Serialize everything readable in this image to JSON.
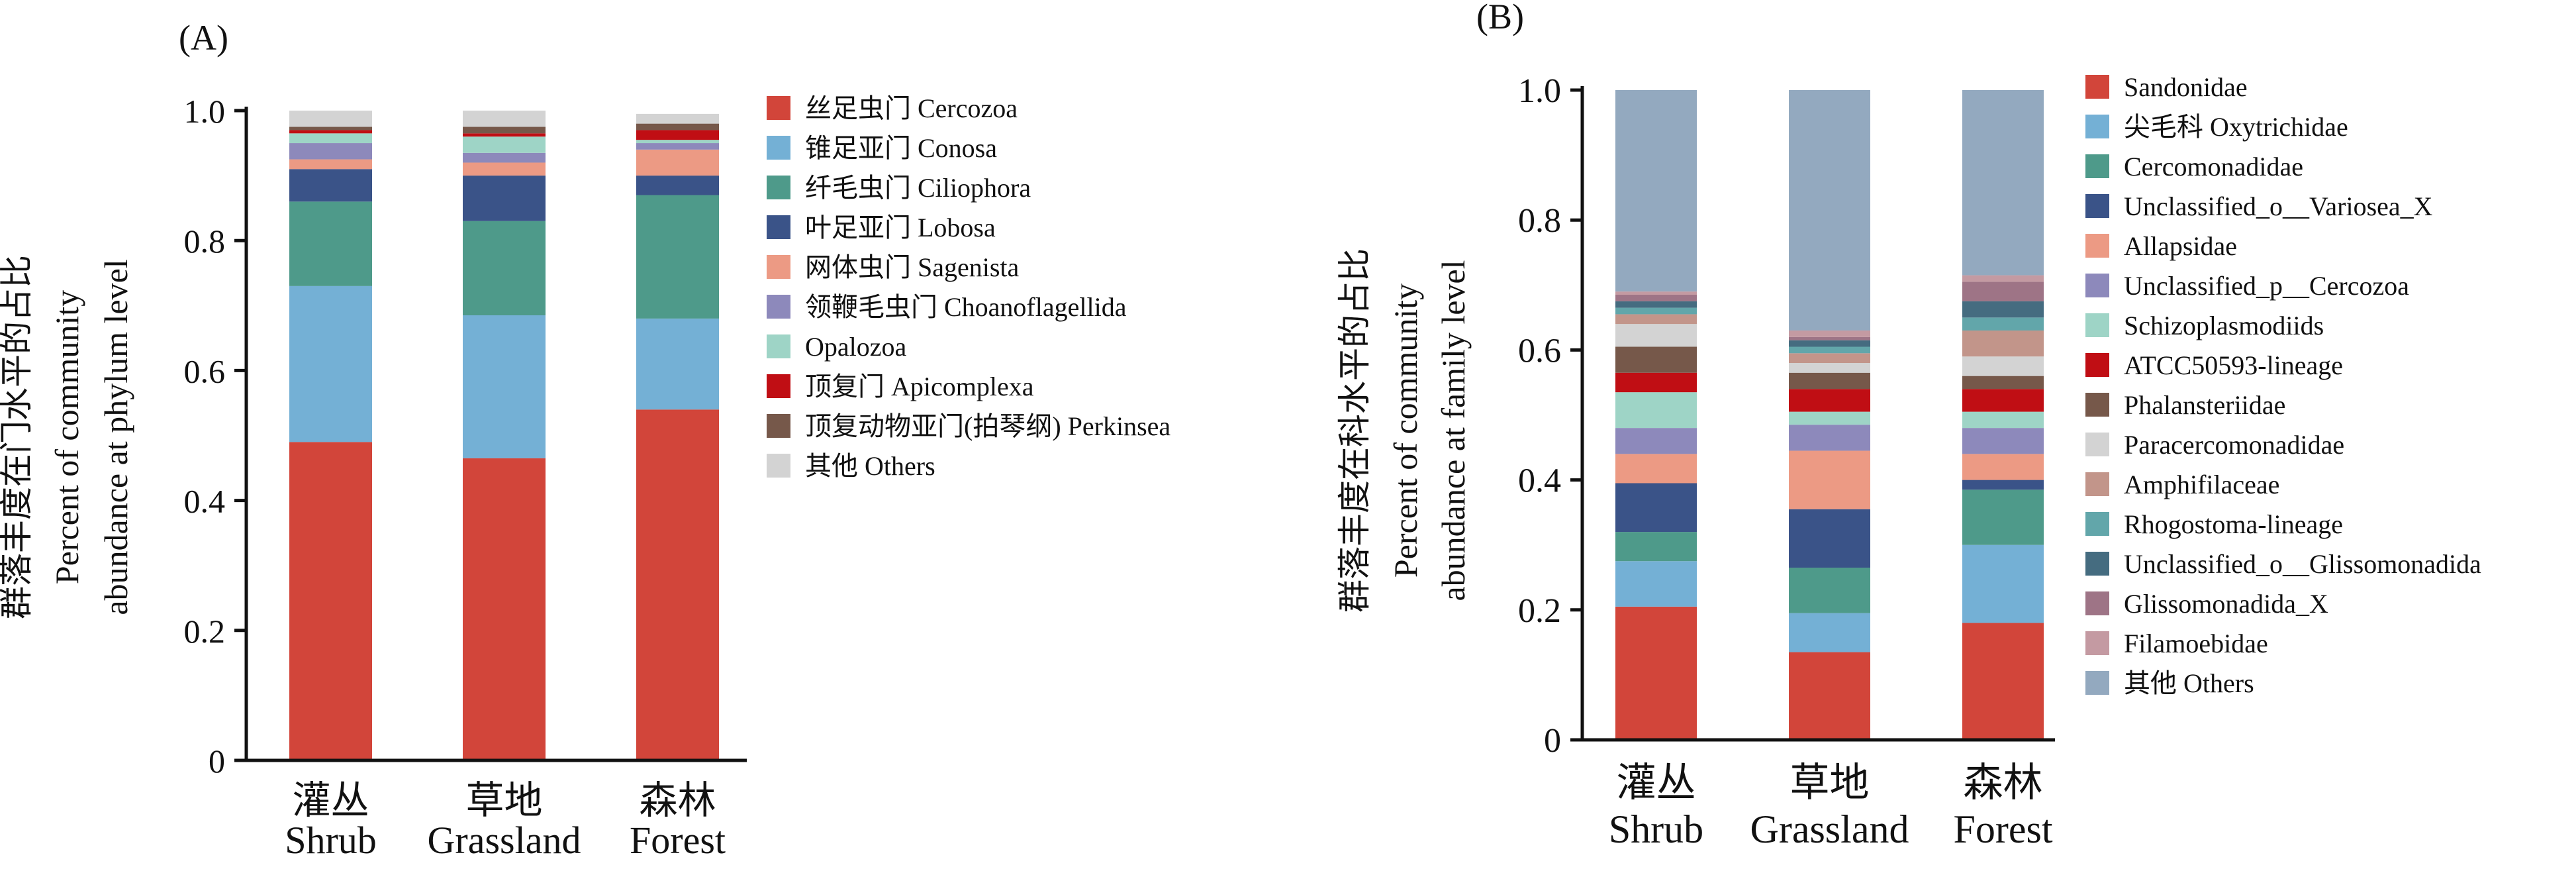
{
  "colors": {
    "axis": "#111111",
    "Cercozoa": "#D2453A",
    "Conosa": "#74B0D5",
    "Ciliophora": "#4E9A8A",
    "Lobosa": "#3A5388",
    "Sagenista": "#EC9A84",
    "Choanoflagellida": "#8D89BB",
    "Opalozoa": "#9ED4C6",
    "Apicomplexa": "#C00E14",
    "Perkinsea": "#76584A",
    "Others": "#D3D3D3",
    "Sandonidae": "#D2453A",
    "Oxytrichidae": "#74B0D5",
    "Cercomonadidae": "#4E9A8A",
    "Variosea_X": "#3A5388",
    "Allapsidae": "#EC9A84",
    "p_Cercozoa": "#8D89BB",
    "Schizoplasmodiids": "#9ED4C6",
    "ATCC50593": "#C00E14",
    "Phalansteriidae": "#76584A",
    "Paracercomonadidae": "#D3D3D3",
    "Amphifilaceae": "#C2958A",
    "Rhogostoma": "#62A6AA",
    "o_Glissomonadida": "#456C80",
    "Glissomonadida_X": "#9E7486",
    "Filamoebidae": "#C49AA2",
    "OthersB": "#93A9BF"
  },
  "chart_data": [
    {
      "type": "bar",
      "stacked": true,
      "panel_label": "(A)",
      "ylabel_cn": "群落丰度在门水平的占比",
      "ylabel_en_1": "Percent of community",
      "ylabel_en_2": "abundance at phylum level",
      "ylim": [
        0,
        1.0
      ],
      "yticks": [
        "0",
        "0.2",
        "0.4",
        "0.6",
        "0.8",
        "1.0"
      ],
      "categories": [
        {
          "cn": "灌丛",
          "en": "Shrub"
        },
        {
          "cn": "草地",
          "en": "Grassland"
        },
        {
          "cn": "森林",
          "en": "Forest"
        }
      ],
      "series": [
        {
          "name": "丝足虫门 Cercozoa",
          "key": "Cercozoa",
          "values": [
            0.49,
            0.465,
            0.54
          ]
        },
        {
          "name": "锥足亚门  Conosa",
          "key": "Conosa",
          "values": [
            0.24,
            0.22,
            0.14
          ]
        },
        {
          "name": "纤毛虫门 Ciliophora",
          "key": "Ciliophora",
          "values": [
            0.13,
            0.145,
            0.19
          ]
        },
        {
          "name": "叶足亚门 Lobosa",
          "key": "Lobosa",
          "values": [
            0.05,
            0.07,
            0.03
          ]
        },
        {
          "name": "网体虫门 Sagenista",
          "key": "Sagenista",
          "values": [
            0.015,
            0.02,
            0.04
          ]
        },
        {
          "name": "领鞭毛虫门 Choanoflagellida",
          "key": "Choanoflagellida",
          "values": [
            0.025,
            0.015,
            0.01
          ]
        },
        {
          "name": "Opalozoa",
          "key": "Opalozoa",
          "values": [
            0.015,
            0.025,
            0.005
          ]
        },
        {
          "name": "顶复门 Apicomplexa",
          "key": "Apicomplexa",
          "values": [
            0.005,
            0.005,
            0.015
          ]
        },
        {
          "name": "顶复动物亚门(拍琴纲) Perkinsea",
          "key": "Perkinsea",
          "values": [
            0.005,
            0.01,
            0.01
          ]
        },
        {
          "name": "其他 Others",
          "key": "Others",
          "values": [
            0.025,
            0.025,
            0.015
          ]
        }
      ]
    },
    {
      "type": "bar",
      "stacked": true,
      "panel_label": "(B)",
      "ylabel_cn": "群落丰度在科水平的占比",
      "ylabel_en_1": "Percent of community",
      "ylabel_en_2": "abundance at family level",
      "ylim": [
        0,
        1.0
      ],
      "yticks": [
        "0",
        "0.2",
        "0.4",
        "0.6",
        "0.8",
        "1.0"
      ],
      "categories": [
        {
          "cn": "灌丛",
          "en": "Shrub"
        },
        {
          "cn": "草地",
          "en": "Grassland"
        },
        {
          "cn": "森林",
          "en": "Forest"
        }
      ],
      "series": [
        {
          "name": "Sandonidae",
          "key": "Sandonidae",
          "values": [
            0.205,
            0.135,
            0.18
          ]
        },
        {
          "name": "尖毛科 Oxytrichidae",
          "key": "Oxytrichidae",
          "values": [
            0.07,
            0.06,
            0.12
          ]
        },
        {
          "name": "Cercomonadidae",
          "key": "Cercomonadidae",
          "values": [
            0.045,
            0.07,
            0.085
          ]
        },
        {
          "name": "Unclassified_o__Variosea_X",
          "key": "Variosea_X",
          "values": [
            0.075,
            0.09,
            0.015
          ]
        },
        {
          "name": "Allapsidae",
          "key": "Allapsidae",
          "values": [
            0.045,
            0.09,
            0.04
          ]
        },
        {
          "name": "Unclassified_p__Cercozoa",
          "key": "p_Cercozoa",
          "values": [
            0.04,
            0.04,
            0.04
          ]
        },
        {
          "name": "Schizoplasmodiids",
          "key": "Schizoplasmodiids",
          "values": [
            0.055,
            0.02,
            0.025
          ]
        },
        {
          "name": "ATCC50593-lineage",
          "key": "ATCC50593",
          "values": [
            0.03,
            0.035,
            0.035
          ]
        },
        {
          "name": "Phalansteriidae",
          "key": "Phalansteriidae",
          "values": [
            0.04,
            0.025,
            0.02
          ]
        },
        {
          "name": "Paracercomonadidae",
          "key": "Paracercomonadidae",
          "values": [
            0.035,
            0.015,
            0.03
          ]
        },
        {
          "name": "Amphifilaceae",
          "key": "Amphifilaceae",
          "values": [
            0.015,
            0.015,
            0.04
          ]
        },
        {
          "name": "Rhogostoma-lineage",
          "key": "Rhogostoma",
          "values": [
            0.01,
            0.01,
            0.02
          ]
        },
        {
          "name": "Unclassified_o__Glissomonadida",
          "key": "o_Glissomonadida",
          "values": [
            0.01,
            0.01,
            0.025
          ]
        },
        {
          "name": "Glissomonadida_X",
          "key": "Glissomonadida_X",
          "values": [
            0.01,
            0.005,
            0.03
          ]
        },
        {
          "name": "Filamoebidae",
          "key": "Filamoebidae",
          "values": [
            0.005,
            0.01,
            0.01
          ]
        },
        {
          "name": "其他 Others",
          "key": "OthersB",
          "values": [
            0.31,
            0.37,
            0.285
          ]
        }
      ]
    }
  ]
}
